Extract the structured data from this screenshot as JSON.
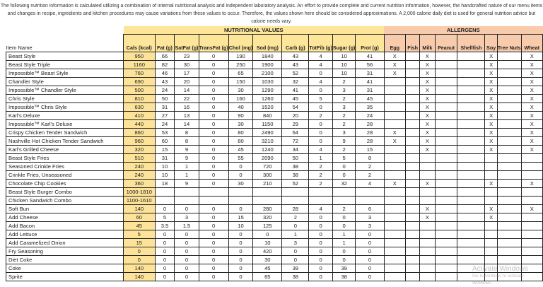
{
  "intro": "The following nutrition information is calculated utilizing a combination of internal nutritional analysis and independent laboratory analysis.  An effort to provide complete and current nutrition information, however, the handcrafted nature of our menu items and changes in recipe, ingredients and kitchen procedures may cause variations from these values to occur.  Therefore, the values shown here should be considered approximations.    A 2,000 calorie daily diet is used for general nutrition advice but calorie needs vary.",
  "groups": {
    "nutritional": "NUTRITIONAL VALUES",
    "allergens": "ALLERGENS"
  },
  "item_header": "Item Name",
  "nutrition_columns": [
    "Cals (kcal)",
    "Fat (g)",
    "SatFat (g)",
    "TransFat (g)",
    "Chol (mg)",
    "Sod (mg)",
    "Carb (g)",
    "TotFib (g)",
    "Sugar (g)",
    "Prot (g)"
  ],
  "allergen_columns": [
    "Egg",
    "Fish",
    "Milk",
    "Peanut",
    "Shellfish",
    "Soy",
    "Tree Nuts",
    "Wheat"
  ],
  "rows": [
    {
      "name": "Beast Style",
      "n": [
        "950",
        "66",
        "23",
        "0",
        "190",
        "1840",
        "43",
        "4",
        "10",
        "41"
      ],
      "a": [
        "X",
        "",
        "X",
        "",
        "",
        "X",
        "",
        "X"
      ]
    },
    {
      "name": "Beast Style Triple",
      "n": [
        "1160",
        "82",
        "30",
        "0",
        "250",
        "1900",
        "43",
        "4",
        "10",
        "56"
      ],
      "a": [
        "X",
        "",
        "X",
        "",
        "",
        "X",
        "",
        "X"
      ]
    },
    {
      "name": "Impossible™ Beast Style",
      "n": [
        "760",
        "46",
        "17",
        "0",
        "65",
        "2100",
        "52",
        "0",
        "10",
        "31"
      ],
      "a": [
        "X",
        "",
        "X",
        "",
        "",
        "X",
        "",
        "X"
      ]
    },
    {
      "name": "Chandler Style",
      "n": [
        "690",
        "43",
        "20",
        "0",
        "150",
        "1030",
        "32",
        "4",
        "2",
        "41"
      ],
      "a": [
        "",
        "",
        "X",
        "",
        "",
        "X",
        "",
        "X"
      ]
    },
    {
      "name": " Impossible™ Chandler Style",
      "n": [
        "500",
        "24",
        "14",
        "0",
        "30",
        "1290",
        "41",
        "0",
        "3",
        "31"
      ],
      "a": [
        "",
        "",
        "X",
        "",
        "",
        "X",
        "",
        "X"
      ]
    },
    {
      "name": "Chris Style",
      "n": [
        "810",
        "50",
        "22",
        "0",
        "160",
        "1260",
        "45",
        "5",
        "2",
        "45"
      ],
      "a": [
        "",
        "",
        "X",
        "",
        "",
        "X",
        "",
        "X"
      ]
    },
    {
      "name": "Impossible™ Chris Style",
      "n": [
        "630",
        "31",
        "16",
        "0",
        "40",
        "1520",
        "54",
        "0",
        "3",
        "35"
      ],
      "a": [
        "",
        "",
        "X",
        "",
        "",
        "X",
        "",
        "X"
      ]
    },
    {
      "name": "Karl's Deluxe",
      "n": [
        "410",
        "27",
        "13",
        "0",
        "90",
        "840",
        "20",
        "2",
        "2",
        "24"
      ],
      "a": [
        "",
        "",
        "X",
        "",
        "",
        "X",
        "",
        "X"
      ]
    },
    {
      "name": "Impossible™ Karl's Deluxe",
      "n": [
        "440",
        "24",
        "14",
        "0",
        "30",
        "1150",
        "29",
        "0",
        "2",
        "28"
      ],
      "a": [
        "",
        "",
        "X",
        "",
        "",
        "X",
        "",
        "X"
      ]
    },
    {
      "name": "Crispy Chicken Tender Sandwich",
      "n": [
        "860",
        "53",
        "8",
        "0",
        "80",
        "2490",
        "64",
        "0",
        "3",
        "28"
      ],
      "a": [
        "X",
        "",
        "X",
        "",
        "",
        "X",
        "",
        "X"
      ]
    },
    {
      "name": "Nashville Hot Chicken Tender Sandwich",
      "n": [
        "960",
        "60",
        "8",
        "0",
        "80",
        "3210",
        "72",
        "0",
        "9",
        "28"
      ],
      "a": [
        "X",
        "",
        "X",
        "",
        "",
        "X",
        "",
        "X"
      ]
    },
    {
      "name": "Karl's Grilled Cheese",
      "n": [
        "320",
        "15",
        "9",
        "0",
        "45",
        "1240",
        "34",
        "4",
        "2",
        "15"
      ],
      "a": [
        "",
        "",
        "X",
        "",
        "",
        "X",
        "",
        "X"
      ]
    },
    {
      "name": "Beast Style Fries",
      "n": [
        "510",
        "31",
        "9",
        "0",
        "55",
        "2090",
        "50",
        "1",
        "5",
        "8"
      ],
      "a": [
        "",
        "",
        "",
        "",
        "",
        "",
        "",
        ""
      ]
    },
    {
      "name": "Seasoned Crinkle Fries",
      "n": [
        "240",
        "10",
        "1",
        "0",
        "0",
        "720",
        "38",
        "2",
        "0",
        "2"
      ],
      "a": [
        "",
        "",
        "",
        "",
        "",
        "",
        "",
        ""
      ]
    },
    {
      "name": "Crinkle Fries, Unseasoned",
      "n": [
        "240",
        "10",
        "1",
        "0",
        "0",
        "300",
        "38",
        "2",
        "0",
        "2"
      ],
      "a": [
        "",
        "",
        "",
        "",
        "",
        "",
        "",
        ""
      ]
    },
    {
      "name": "Chocolate Chip Cookies",
      "n": [
        "360",
        "18",
        "9",
        "0",
        "30",
        "210",
        "52",
        "2",
        "32",
        "4"
      ],
      "a": [
        "X",
        "",
        "X",
        "",
        "",
        "X",
        "",
        "X"
      ]
    },
    {
      "name": "Beast Style Burger Combo",
      "n": [
        "1000-1810",
        "",
        "",
        "",
        "",
        "",
        "",
        "",
        "",
        ""
      ],
      "a": [
        "",
        "",
        "",
        "",
        "",
        "",
        "",
        ""
      ]
    },
    {
      "name": "Chicken Sandwich Combo",
      "n": [
        "1100-1610",
        "",
        "",
        "",
        "",
        "",
        "",
        "",
        "",
        ""
      ],
      "a": [
        "",
        "",
        "",
        "",
        "",
        "",
        "",
        ""
      ]
    },
    {
      "name": "Soft Bun",
      "n": [
        "140",
        "0",
        "0",
        "0",
        "0",
        "280",
        "28",
        "4",
        "2",
        "6"
      ],
      "a": [
        "",
        "",
        "X",
        "",
        "",
        "X",
        "",
        "X"
      ]
    },
    {
      "name": "Add Cheese",
      "n": [
        "60",
        "5",
        "3",
        "0",
        "15",
        "320",
        "2",
        "0",
        "0",
        "3"
      ],
      "a": [
        "",
        "",
        "X",
        "",
        "",
        "X",
        "",
        ""
      ]
    },
    {
      "name": "Add Bacon",
      "n": [
        "45",
        "3.5",
        "1.5",
        "0",
        "10",
        "125",
        "0",
        "0",
        "0",
        "3"
      ],
      "a": [
        "",
        "",
        "",
        "",
        "",
        "",
        "",
        ""
      ]
    },
    {
      "name": "Add Lettuce",
      "n": [
        "5",
        "0",
        "0",
        "0",
        "0",
        "0",
        "1",
        "0",
        "1",
        "0"
      ],
      "a": [
        "",
        "",
        "",
        "",
        "",
        "",
        "",
        ""
      ]
    },
    {
      "name": "Add Caramelized Onion",
      "n": [
        "15",
        "0",
        "0",
        "0",
        "0",
        "10",
        "3",
        "0",
        "1",
        "0"
      ],
      "a": [
        "",
        "",
        "",
        "",
        "",
        "",
        "",
        ""
      ]
    },
    {
      "name": "Fry Seasoning",
      "n": [
        "0",
        "0",
        "0",
        "0",
        "0",
        "420",
        "0",
        "0",
        "0",
        "0"
      ],
      "a": [
        "",
        "",
        "",
        "",
        "",
        "",
        "",
        ""
      ]
    },
    {
      "name": "Diet Coke",
      "n": [
        "0",
        "0",
        "0",
        "0",
        "0",
        "30",
        "0",
        "0",
        "0",
        "0"
      ],
      "a": [
        "",
        "",
        "",
        "",
        "",
        "",
        "",
        ""
      ]
    },
    {
      "name": "Coke",
      "n": [
        "140",
        "0",
        "0",
        "0",
        "0",
        "45",
        "39",
        "0",
        "39",
        "0"
      ],
      "a": [
        "",
        "",
        "",
        "",
        "",
        "",
        "",
        ""
      ]
    },
    {
      "name": "Sprite",
      "n": [
        "140",
        "0",
        "0",
        "0",
        "0",
        "65",
        "38",
        "0",
        "38",
        "0"
      ],
      "a": [
        "",
        "",
        "",
        "",
        "",
        "",
        "",
        ""
      ]
    }
  ],
  "watermark": {
    "title": "Activate Windows",
    "subtitle": "Go to Settings to activate Windows."
  },
  "colors": {
    "nutrition_header": "#fde69a",
    "allergen_header": "#f8cbad",
    "calories_column": "#fde39a"
  }
}
